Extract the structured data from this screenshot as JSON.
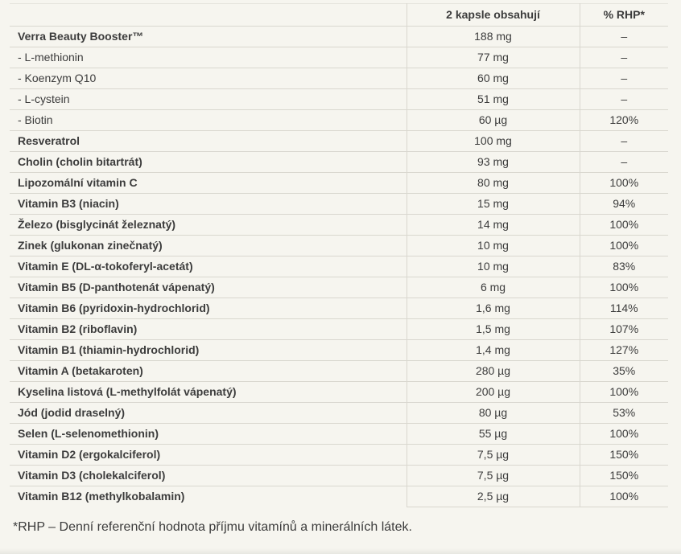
{
  "page": {
    "background_color": "#f6f5ef",
    "text_color": "#3c3c3c",
    "border_color": "#d9d7cf"
  },
  "table": {
    "header": {
      "product_column_label": "",
      "amount_label": "2 kapsle obsahují",
      "rhp_label": "% RHP*"
    },
    "rows": [
      {
        "name": "Verra Beauty Booster™",
        "amount": "188 mg",
        "rhp": "–",
        "bold": true
      },
      {
        "name": "- L-methionin",
        "amount": "77 mg",
        "rhp": "–",
        "bold": false
      },
      {
        "name": "- Koenzym Q10",
        "amount": "60 mg",
        "rhp": "–",
        "bold": false
      },
      {
        "name": "- L-cystein",
        "amount": "51 mg",
        "rhp": "–",
        "bold": false
      },
      {
        "name": "- Biotin",
        "amount": "60 µg",
        "rhp": "120%",
        "bold": false
      },
      {
        "name": "Resveratrol",
        "amount": "100 mg",
        "rhp": "–",
        "bold": true
      },
      {
        "name": "Cholin (cholin bitartrát)",
        "amount": "93 mg",
        "rhp": "–",
        "bold": true
      },
      {
        "name": "Lipozomální vitamin C",
        "amount": "80 mg",
        "rhp": "100%",
        "bold": true
      },
      {
        "name": "Vitamin B3 (niacin)",
        "amount": "15 mg",
        "rhp": "94%",
        "bold": true
      },
      {
        "name": "Železo (bisglycinát železnatý)",
        "amount": "14 mg",
        "rhp": "100%",
        "bold": true
      },
      {
        "name": "Zinek (glukonan zinečnatý)",
        "amount": "10 mg",
        "rhp": "100%",
        "bold": true
      },
      {
        "name": "Vitamin E (DL-α-tokoferyl-acetát)",
        "amount": "10 mg",
        "rhp": "83%",
        "bold": true
      },
      {
        "name": "Vitamin B5 (D-panthotenát vápenatý)",
        "amount": "6 mg",
        "rhp": "100%",
        "bold": true
      },
      {
        "name": "Vitamin B6 (pyridoxin-hydrochlorid)",
        "amount": "1,6 mg",
        "rhp": "114%",
        "bold": true
      },
      {
        "name": "Vitamin B2 (riboflavin)",
        "amount": "1,5 mg",
        "rhp": "107%",
        "bold": true
      },
      {
        "name": "Vitamin B1 (thiamin-hydrochlorid)",
        "amount": "1,4 mg",
        "rhp": "127%",
        "bold": true
      },
      {
        "name": "Vitamin A (betakaroten)",
        "amount": "280 µg",
        "rhp": "35%",
        "bold": true
      },
      {
        "name": "Kyselina listová (L-methylfolát vápenatý)",
        "amount": "200 µg",
        "rhp": "100%",
        "bold": true
      },
      {
        "name": "Jód (jodid draselný)",
        "amount": "80 µg",
        "rhp": "53%",
        "bold": true
      },
      {
        "name": "Selen (L-selenomethionin)",
        "amount": "55 µg",
        "rhp": "100%",
        "bold": true
      },
      {
        "name": "Vitamin D2 (ergokalciferol)",
        "amount": "7,5 µg",
        "rhp": "150%",
        "bold": true
      },
      {
        "name": "Vitamin D3 (cholekalciferol)",
        "amount": "7,5 µg",
        "rhp": "150%",
        "bold": true
      },
      {
        "name": "Vitamin B12 (methylkobalamin)",
        "amount": "2,5 µg",
        "rhp": "100%",
        "bold": true
      }
    ]
  },
  "footnote": "*RHP – Denní referenční hodnota příjmu vitamínů a minerálních látek."
}
